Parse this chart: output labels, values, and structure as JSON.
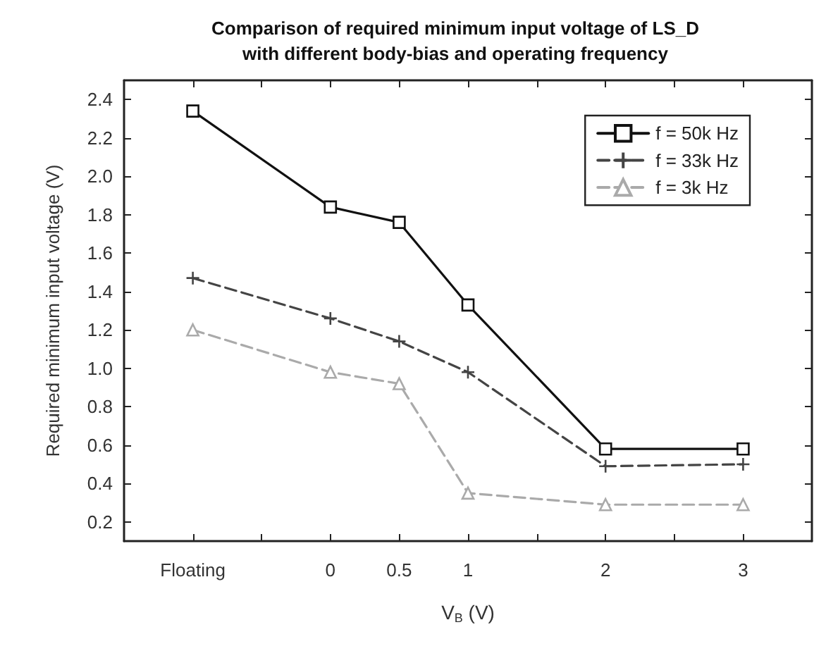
{
  "chart_data": {
    "type": "line",
    "title": "Comparison of required minimum input voltage of LS_D\nwith different body-bias and operating frequency",
    "xlabel": "V$_{B}$ (V)",
    "ylabel": "Required minimum input voltage (V)",
    "x": [
      -1,
      0,
      0.5,
      1,
      2,
      3
    ],
    "series": [
      {
        "name": "f = 50k Hz",
        "color": "#111111",
        "marker": "square",
        "line_style": "solid",
        "values": [
          2.34,
          1.84,
          1.76,
          1.33,
          0.58,
          0.58
        ]
      },
      {
        "name": "f = 33k Hz",
        "color": "#444444",
        "marker": "cross",
        "line_style": "dashed",
        "values": [
          1.47,
          1.26,
          1.14,
          0.98,
          0.49,
          0.5
        ]
      },
      {
        "name": "f = 3k Hz",
        "color": "#aaaaaa",
        "marker": "triangle",
        "line_style": "dashed",
        "values": [
          1.2,
          0.98,
          0.92,
          0.35,
          0.29,
          0.29
        ]
      }
    ],
    "xlim": [
      -1.5,
      3.5
    ],
    "xticks": [
      {
        "value": -1,
        "label": "Floating"
      },
      {
        "value": -0.5,
        "label": null
      },
      0,
      0.5,
      1,
      {
        "value": 1.5,
        "label": null
      },
      2,
      {
        "value": 2.5,
        "label": null
      },
      3
    ],
    "ylim": [
      0.1,
      2.5
    ],
    "yticks": [
      0.2,
      0.4,
      0.6,
      0.8,
      {
        "value": 1,
        "label": "1.0"
      },
      1.2,
      1.4,
      1.6,
      1.8,
      {
        "value": 2,
        "label": "2.0"
      },
      2.2,
      2.4
    ],
    "legend": "top right",
    "grid": false
  }
}
